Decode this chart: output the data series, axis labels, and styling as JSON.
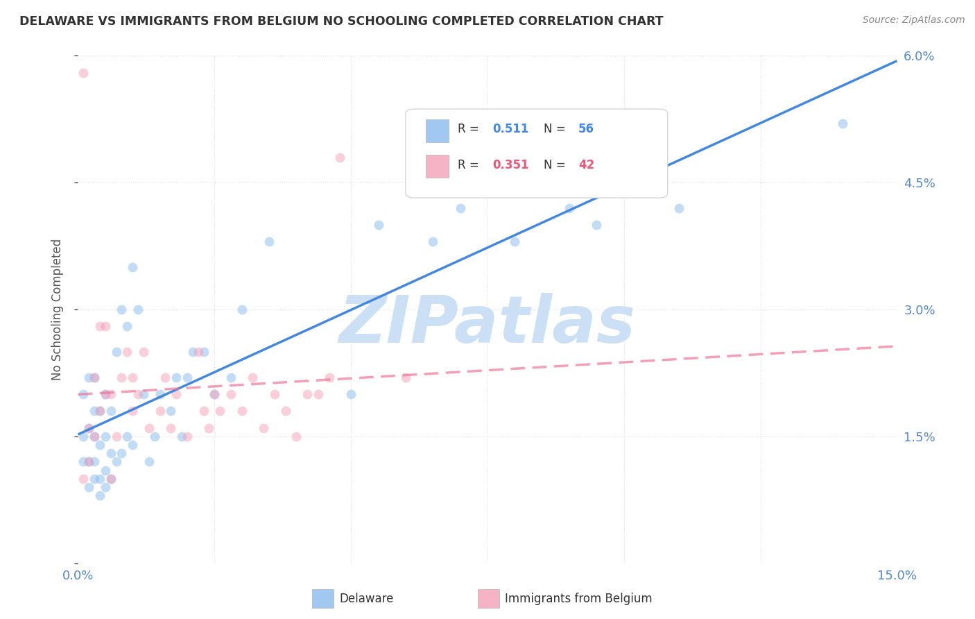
{
  "title": "DELAWARE VS IMMIGRANTS FROM BELGIUM NO SCHOOLING COMPLETED CORRELATION CHART",
  "source": "Source: ZipAtlas.com",
  "ylabel": "No Schooling Completed",
  "xlim": [
    0.0,
    0.15
  ],
  "ylim": [
    0.0,
    0.06
  ],
  "xticks": [
    0.0,
    0.025,
    0.05,
    0.075,
    0.1,
    0.125,
    0.15
  ],
  "xtick_labels": [
    "0.0%",
    "",
    "",
    "",
    "",
    "",
    "15.0%"
  ],
  "yticks": [
    0.0,
    0.015,
    0.03,
    0.045,
    0.06
  ],
  "ytick_labels": [
    "",
    "1.5%",
    "3.0%",
    "4.5%",
    "6.0%"
  ],
  "series1_name": "Delaware",
  "series1_color": "#88BBEE",
  "series1_line_color": "#4488DD",
  "series1_R": 0.511,
  "series1_N": 56,
  "series2_name": "Immigrants from Belgium",
  "series2_color": "#F4A0B8",
  "series2_line_color": "#EE7799",
  "series2_R": 0.351,
  "series2_N": 42,
  "background_color": "#ffffff",
  "grid_color": "#dddddd",
  "axis_label_color": "#5588cc",
  "title_color": "#333333",
  "watermark": "ZIPatlas",
  "watermark_color": "#cce0f5",
  "legend_R_color1": "#4488ee",
  "legend_R_color2": "#ee5577",
  "series1_x": [
    0.001,
    0.001,
    0.001,
    0.002,
    0.002,
    0.002,
    0.002,
    0.003,
    0.003,
    0.003,
    0.003,
    0.003,
    0.004,
    0.004,
    0.004,
    0.004,
    0.005,
    0.005,
    0.005,
    0.005,
    0.006,
    0.006,
    0.006,
    0.007,
    0.007,
    0.008,
    0.008,
    0.009,
    0.009,
    0.01,
    0.01,
    0.011,
    0.012,
    0.013,
    0.014,
    0.015,
    0.017,
    0.018,
    0.019,
    0.02,
    0.021,
    0.023,
    0.025,
    0.028,
    0.03,
    0.035,
    0.05,
    0.055,
    0.065,
    0.07,
    0.08,
    0.09,
    0.095,
    0.1,
    0.11,
    0.14
  ],
  "series1_y": [
    0.012,
    0.015,
    0.02,
    0.009,
    0.012,
    0.016,
    0.022,
    0.01,
    0.012,
    0.015,
    0.018,
    0.022,
    0.008,
    0.01,
    0.014,
    0.018,
    0.009,
    0.011,
    0.015,
    0.02,
    0.01,
    0.013,
    0.018,
    0.012,
    0.025,
    0.013,
    0.03,
    0.015,
    0.028,
    0.014,
    0.035,
    0.03,
    0.02,
    0.012,
    0.015,
    0.02,
    0.018,
    0.022,
    0.015,
    0.022,
    0.025,
    0.025,
    0.02,
    0.022,
    0.03,
    0.038,
    0.02,
    0.04,
    0.038,
    0.042,
    0.038,
    0.042,
    0.04,
    0.048,
    0.042,
    0.052
  ],
  "series2_x": [
    0.001,
    0.001,
    0.002,
    0.002,
    0.003,
    0.003,
    0.004,
    0.004,
    0.005,
    0.005,
    0.006,
    0.006,
    0.007,
    0.008,
    0.009,
    0.01,
    0.01,
    0.011,
    0.012,
    0.013,
    0.015,
    0.016,
    0.017,
    0.018,
    0.02,
    0.022,
    0.023,
    0.024,
    0.025,
    0.026,
    0.028,
    0.03,
    0.032,
    0.034,
    0.036,
    0.038,
    0.04,
    0.042,
    0.044,
    0.046,
    0.048,
    0.06
  ],
  "series2_y": [
    0.01,
    0.058,
    0.012,
    0.016,
    0.015,
    0.022,
    0.018,
    0.028,
    0.02,
    0.028,
    0.01,
    0.02,
    0.015,
    0.022,
    0.025,
    0.018,
    0.022,
    0.02,
    0.025,
    0.016,
    0.018,
    0.022,
    0.016,
    0.02,
    0.015,
    0.025,
    0.018,
    0.016,
    0.02,
    0.018,
    0.02,
    0.018,
    0.022,
    0.016,
    0.02,
    0.018,
    0.015,
    0.02,
    0.02,
    0.022,
    0.048,
    0.022
  ],
  "marker_size": 100,
  "marker_alpha": 0.5,
  "line_width": 2.5
}
